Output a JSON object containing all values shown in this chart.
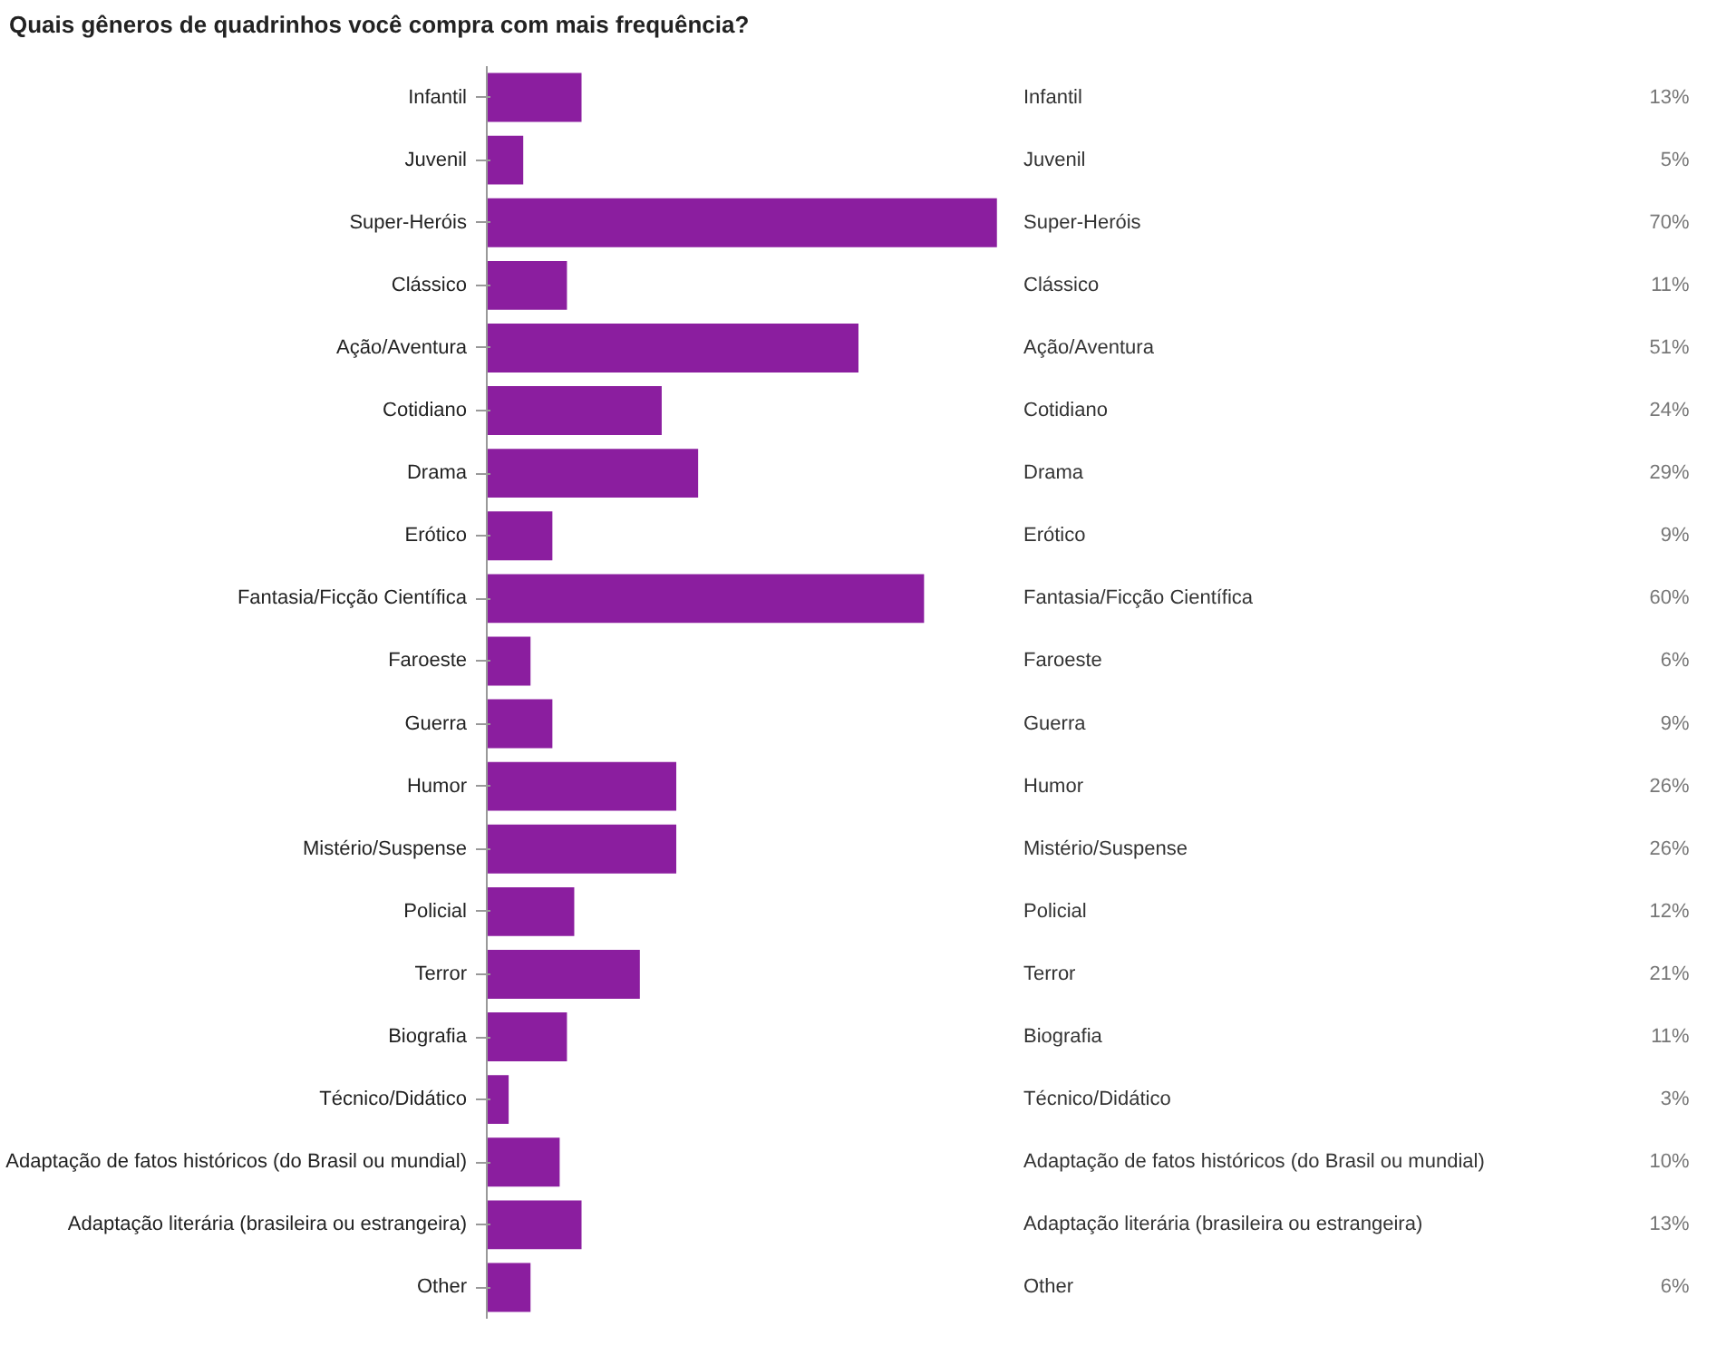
{
  "chart_data": {
    "type": "bar",
    "orientation": "horizontal",
    "title": "Quais gêneros de quadrinhos você compra com mais frequência?",
    "categories": [
      "Infantil",
      "Juvenil",
      "Super-Heróis",
      "Clássico",
      "Ação/Aventura",
      "Cotidiano",
      "Drama",
      "Erótico",
      "Fantasia/Ficção Científica",
      "Faroeste",
      "Guerra",
      "Humor",
      "Mistério/Suspense",
      "Policial",
      "Terror",
      "Biografia",
      "Técnico/Didático",
      "Adaptação de fatos históricos (do Brasil ou mundial)",
      "Adaptação literária (brasileira ou estrangeira)",
      "Other"
    ],
    "values": [
      13,
      5,
      70,
      11,
      51,
      24,
      29,
      9,
      60,
      6,
      9,
      26,
      26,
      12,
      21,
      11,
      3,
      10,
      13,
      6
    ],
    "value_labels": [
      "13%",
      "5%",
      "70%",
      "11%",
      "51%",
      "24%",
      "29%",
      "9%",
      "60%",
      "6%",
      "9%",
      "26%",
      "26%",
      "12%",
      "21%",
      "11%",
      "3%",
      "10%",
      "13%",
      "6%"
    ],
    "color": "#8b1e9f",
    "tick_labels": "y"
  }
}
